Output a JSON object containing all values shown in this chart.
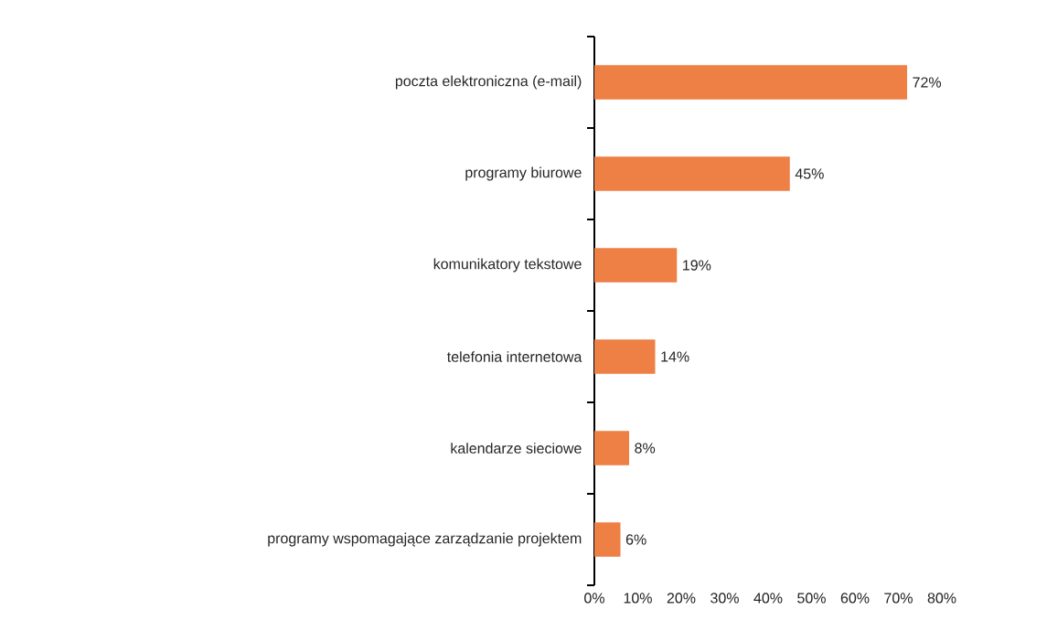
{
  "chart_data": {
    "type": "bar",
    "orientation": "horizontal",
    "categories": [
      "poczta elektroniczna (e-mail)",
      "programy biurowe",
      "komunikatory tekstowe",
      "telefonia internetowa",
      "kalendarze sieciowe",
      "programy wspomagające zarządzanie projektem"
    ],
    "values": [
      72,
      45,
      19,
      14,
      8,
      6
    ],
    "value_labels": [
      "72%",
      "45%",
      "19%",
      "14%",
      "8%",
      "6%"
    ],
    "color": "#ee7f45",
    "xlim": [
      0,
      80
    ],
    "xticks": [
      {
        "value": 0,
        "label": "0%"
      },
      {
        "value": 10,
        "label": "10%"
      },
      {
        "value": 20,
        "label": "20%"
      },
      {
        "value": 30,
        "label": "30%"
      },
      {
        "value": 40,
        "label": "40%"
      },
      {
        "value": 50,
        "label": "50%"
      },
      {
        "value": 60,
        "label": "60%"
      },
      {
        "value": 70,
        "label": "70%"
      },
      {
        "value": 80,
        "label": "80%"
      }
    ]
  }
}
